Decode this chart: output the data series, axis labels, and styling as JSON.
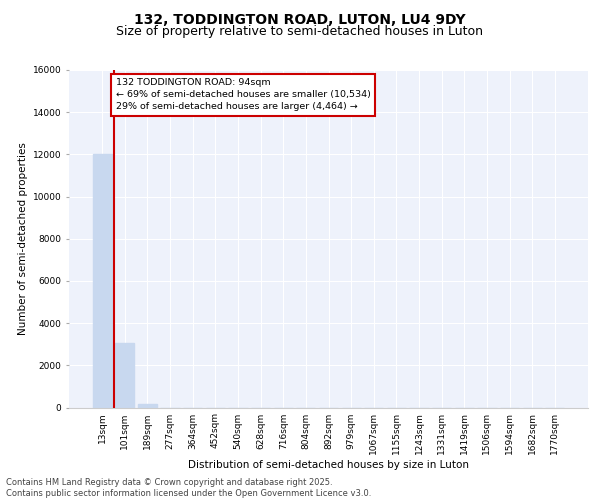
{
  "title": "132, TODDINGTON ROAD, LUTON, LU4 9DY",
  "subtitle": "Size of property relative to semi-detached houses in Luton",
  "xlabel": "Distribution of semi-detached houses by size in Luton",
  "ylabel": "Number of semi-detached properties",
  "categories": [
    "13sqm",
    "101sqm",
    "189sqm",
    "277sqm",
    "364sqm",
    "452sqm",
    "540sqm",
    "628sqm",
    "716sqm",
    "804sqm",
    "892sqm",
    "979sqm",
    "1067sqm",
    "1155sqm",
    "1243sqm",
    "1331sqm",
    "1419sqm",
    "1506sqm",
    "1594sqm",
    "1682sqm",
    "1770sqm"
  ],
  "values": [
    12000,
    3050,
    150,
    0,
    0,
    0,
    0,
    0,
    0,
    0,
    0,
    0,
    0,
    0,
    0,
    0,
    0,
    0,
    0,
    0,
    0
  ],
  "bar_color": "#c8d8ef",
  "annotation_box_color": "#cc0000",
  "annotation_text": "132 TODDINGTON ROAD: 94sqm\n← 69% of semi-detached houses are smaller (10,534)\n29% of semi-detached houses are larger (4,464) →",
  "vline_x": 0.5,
  "ylim": [
    0,
    16000
  ],
  "yticks": [
    0,
    2000,
    4000,
    6000,
    8000,
    10000,
    12000,
    14000,
    16000
  ],
  "footer": "Contains HM Land Registry data © Crown copyright and database right 2025.\nContains public sector information licensed under the Open Government Licence v3.0.",
  "bg_color": "#eef2fb",
  "grid_color": "#ffffff",
  "title_fontsize": 10,
  "subtitle_fontsize": 9,
  "tick_fontsize": 6.5,
  "ylabel_fontsize": 7.5,
  "xlabel_fontsize": 7.5,
  "footer_fontsize": 6
}
